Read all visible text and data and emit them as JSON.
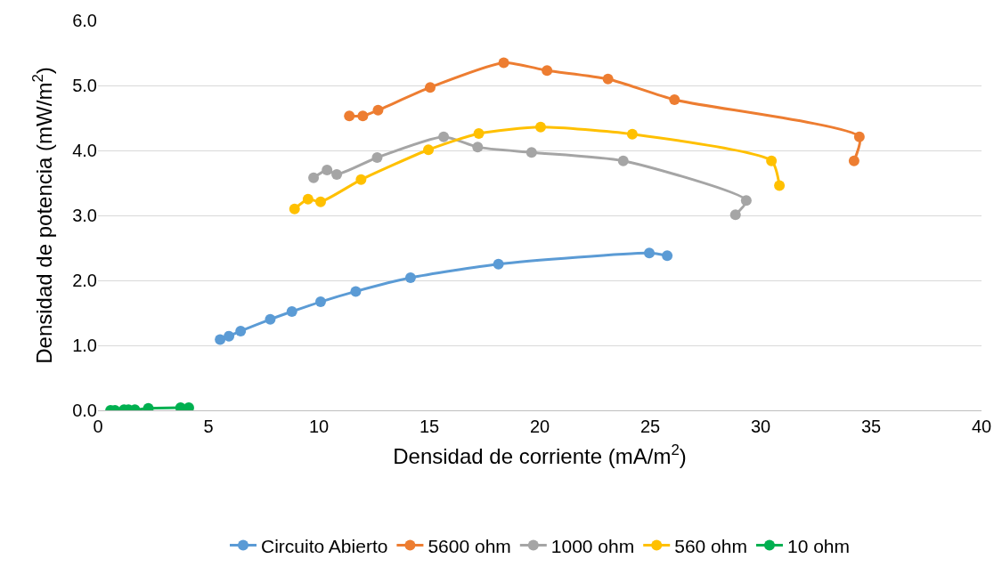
{
  "chart_data": {
    "type": "line",
    "xlabel": "Densidad de corriente (mA/m$^{2}$)",
    "ylabel": "Densidad de potencia (mW/m$^{2}$)",
    "xlim": [
      0,
      40
    ],
    "xticks": [
      0,
      5,
      10,
      15,
      20,
      25,
      30,
      35,
      40
    ],
    "ylim": [
      0,
      6
    ],
    "yticks": [
      {
        "value": 0,
        "label": "0.0"
      },
      {
        "value": 1,
        "label": "1.0"
      },
      {
        "value": 2,
        "label": "2.0"
      },
      {
        "value": 3,
        "label": "3.0"
      },
      {
        "value": 4,
        "label": "4.0"
      },
      {
        "value": 5,
        "label": "5.0"
      },
      {
        "value": 6,
        "label": "6.0"
      }
    ],
    "grid": "y",
    "legend": "bottom",
    "marker": "circle",
    "line_style": "solid",
    "series": [
      {
        "name": "Circuito Abierto",
        "color": "#5b9bd5",
        "x": [
          5.53,
          5.93,
          6.46,
          7.8,
          8.78,
          10.08,
          11.67,
          14.15,
          18.13,
          24.96,
          25.77
        ],
        "values": [
          1.09,
          1.14,
          1.22,
          1.4,
          1.52,
          1.67,
          1.83,
          2.04,
          2.25,
          2.42,
          2.38
        ]
      },
      {
        "name": "5600 ohm",
        "color": "#ed7d31",
        "x": [
          11.38,
          11.99,
          12.68,
          15.04,
          18.37,
          20.33,
          23.09,
          26.1,
          34.47,
          34.23
        ],
        "values": [
          4.53,
          4.53,
          4.62,
          4.97,
          5.35,
          5.23,
          5.1,
          4.78,
          4.21,
          3.84
        ]
      },
      {
        "name": "1000 ohm",
        "color": "#a5a5a5",
        "x": [
          9.76,
          10.37,
          10.81,
          12.64,
          15.65,
          17.19,
          19.63,
          23.78,
          29.35,
          28.86
        ],
        "values": [
          3.58,
          3.7,
          3.63,
          3.89,
          4.21,
          4.05,
          3.97,
          3.84,
          3.23,
          3.01
        ]
      },
      {
        "name": "560 ohm",
        "color": "#ffc000",
        "x": [
          8.9,
          9.51,
          10.08,
          11.91,
          14.96,
          17.24,
          20.04,
          24.19,
          30.49,
          30.85
        ],
        "values": [
          3.1,
          3.25,
          3.21,
          3.55,
          4.01,
          4.26,
          4.36,
          4.25,
          3.84,
          3.46
        ]
      },
      {
        "name": "10 ohm",
        "color": "#00b050",
        "x": [
          0.57,
          0.77,
          1.18,
          1.38,
          1.67,
          2.28,
          3.74,
          4.11
        ],
        "values": [
          0,
          0,
          0.01,
          0.01,
          0.01,
          0.03,
          0.04,
          0.04
        ]
      }
    ]
  }
}
